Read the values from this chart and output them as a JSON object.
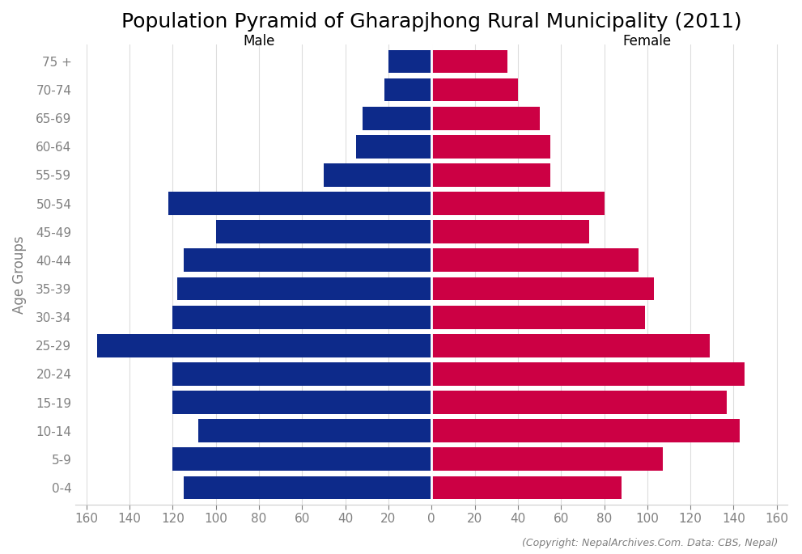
{
  "title": "Population Pyramid of Gharapjhong Rural Municipality (2011)",
  "age_groups": [
    "0-4",
    "5-9",
    "10-14",
    "15-19",
    "20-24",
    "25-29",
    "30-34",
    "35-39",
    "40-44",
    "45-49",
    "50-54",
    "55-59",
    "60-64",
    "65-69",
    "70-74",
    "75 +"
  ],
  "male": [
    115,
    120,
    108,
    120,
    120,
    155,
    120,
    118,
    115,
    100,
    122,
    50,
    35,
    32,
    22,
    20
  ],
  "female": [
    88,
    107,
    143,
    137,
    145,
    129,
    99,
    103,
    96,
    73,
    80,
    55,
    55,
    50,
    40,
    35
  ],
  "male_color": "#0d2a8a",
  "female_color": "#cc0044",
  "male_label": "Male",
  "female_label": "Female",
  "ylabel": "Age Groups",
  "xlim": 165,
  "background_color": "#ffffff",
  "copyright_text": "(Copyright: NepalArchives.Com. Data: CBS, Nepal)",
  "title_fontsize": 18,
  "label_fontsize": 12,
  "tick_fontsize": 11,
  "bar_height": 0.82,
  "grid_color": "#dddddd"
}
